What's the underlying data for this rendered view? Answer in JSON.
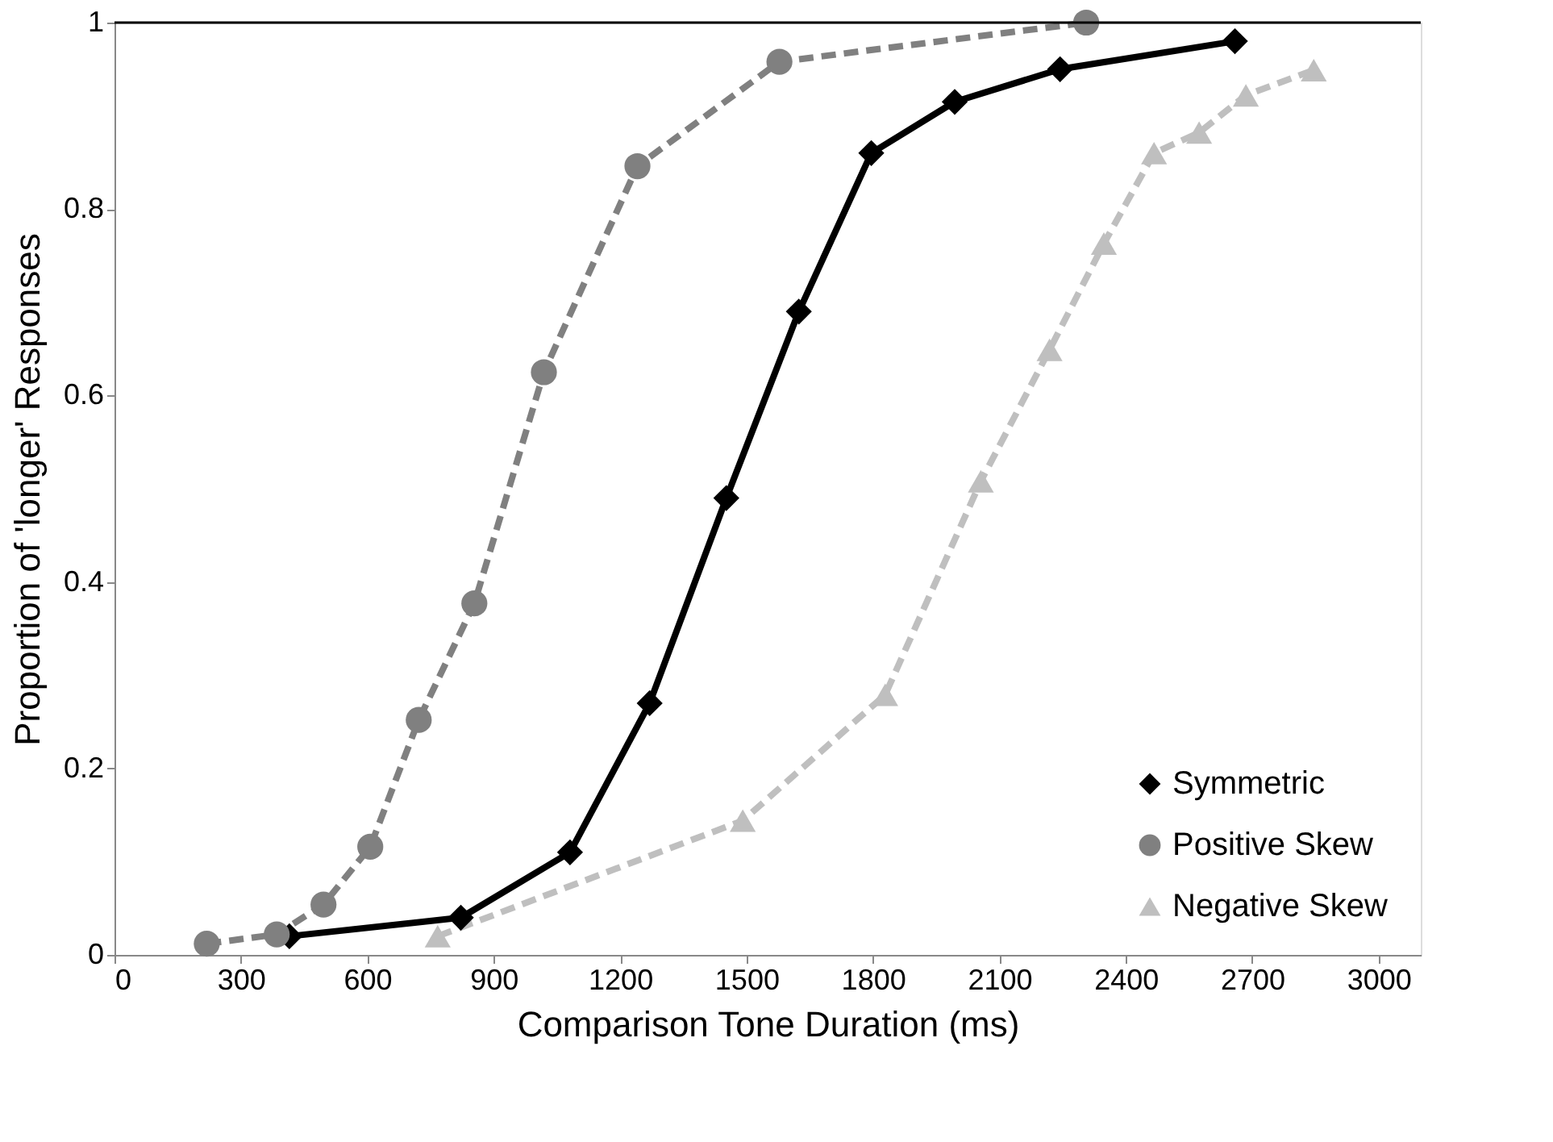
{
  "chart_data": {
    "type": "line",
    "xlabel": "Comparison Tone Duration (ms)",
    "ylabel": "Proportion of 'longer' Responses",
    "xlim": [
      0,
      3100
    ],
    "xticks": [
      0,
      300,
      600,
      900,
      1200,
      1500,
      1800,
      2100,
      2400,
      2700,
      3000
    ],
    "ylim": [
      0,
      1
    ],
    "yticks": [
      0,
      {
        "value": 0.2,
        "label": "0.2"
      },
      {
        "value": 0.4,
        "label": "0.4"
      },
      {
        "value": 0.6,
        "label": "0.6"
      },
      {
        "value": 0.8,
        "label": "0.8"
      },
      1
    ],
    "grid": false,
    "legend": "bottom right",
    "series": [
      {
        "name": "Symmetric",
        "color": "#000000",
        "marker": "diamond",
        "line_style": "solid",
        "x": [
          415,
          822,
          1081,
          1270,
          1452,
          1624,
          1796,
          1994,
          2244,
          2659
        ],
        "values": [
          0.02,
          0.04,
          0.11,
          0.27,
          0.49,
          0.69,
          0.86,
          0.915,
          0.95,
          0.98
        ]
      },
      {
        "name": "Positive Skew",
        "color": "#808080",
        "marker": "circle",
        "line_style": "dashed",
        "x": [
          219,
          385,
          496,
          607,
          722,
          854,
          1019,
          1241,
          1578,
          2306
        ],
        "values": [
          0.012,
          0.022,
          0.054,
          0.116,
          0.252,
          0.377,
          0.625,
          0.846,
          0.958,
          1.0
        ]
      },
      {
        "name": "Negative Skew",
        "color": "#bfbfbf",
        "marker": "triangle",
        "line_style": "dashed",
        "x": [
          767,
          1491,
          1829,
          2056,
          2219,
          2348,
          2467,
          2574,
          2685,
          2846
        ],
        "values": [
          0.02,
          0.144,
          0.279,
          0.508,
          0.649,
          0.763,
          0.86,
          0.882,
          0.922,
          0.949
        ]
      }
    ]
  }
}
